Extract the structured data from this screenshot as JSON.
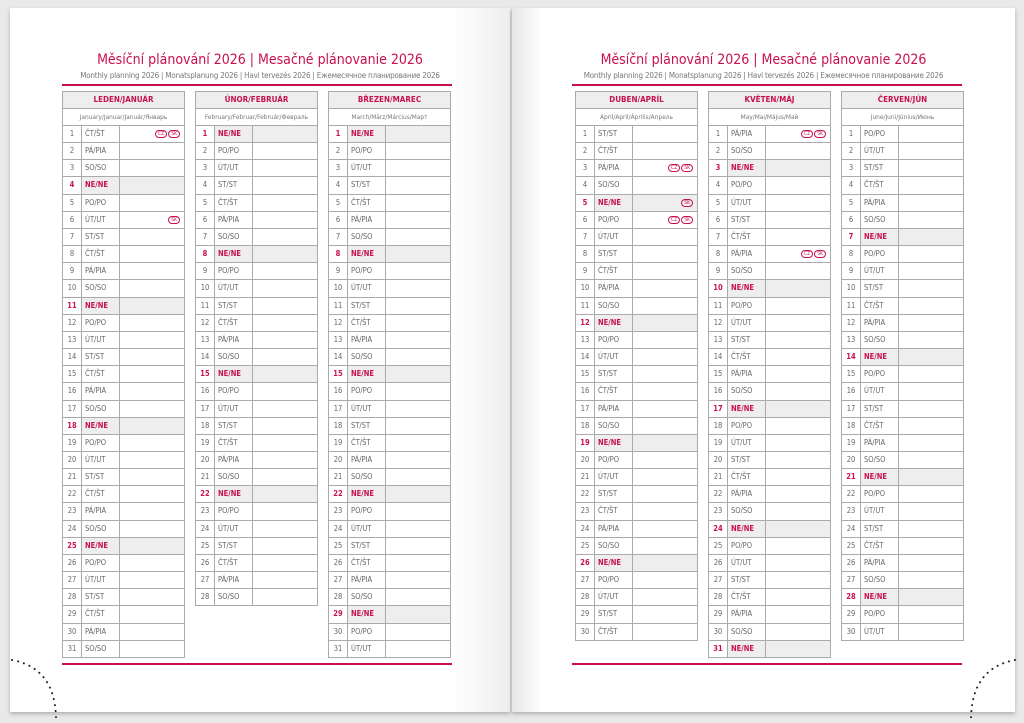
{
  "title": "Měsíční plánování 2026 | Mesačné plánovanie 2026",
  "subtitle": "Monthly planning 2026 | Monatsplanung 2026 | Havi tervezés 2026 | Ежемесячное планирование 2026",
  "colors": {
    "accent": "#c8104e",
    "sunday_fill": "#eeeeee"
  },
  "sunday_label": "NE/NE",
  "months": [
    {
      "name": "LEDEN/JANUÁR",
      "sub": "January/Januar/Január/Январь",
      "days": [
        "ČT/ŠT",
        "PÁ/PIA",
        "SO/SO",
        "NE/NE",
        "PO/PO",
        "ÚT/UT",
        "ST/ST",
        "ČT/ŠT",
        "PÁ/PIA",
        "SO/SO",
        "NE/NE",
        "PO/PO",
        "ÚT/UT",
        "ST/ST",
        "ČT/ŠT",
        "PÁ/PIA",
        "SO/SO",
        "NE/NE",
        "PO/PO",
        "ÚT/UT",
        "ST/ST",
        "ČT/ŠT",
        "PÁ/PIA",
        "SO/SO",
        "NE/NE",
        "PO/PO",
        "ÚT/UT",
        "ST/ST",
        "ČT/ŠT",
        "PÁ/PIA",
        "SO/SO"
      ],
      "holidays": {
        "1": [
          "CZ",
          "SK"
        ],
        "6": [
          "SK"
        ]
      }
    },
    {
      "name": "ÚNOR/FEBRUÁR",
      "sub": "February/Februar/Február/Февраль",
      "days": [
        "NE/NE",
        "PO/PO",
        "ÚT/UT",
        "ST/ST",
        "ČT/ŠT",
        "PÁ/PIA",
        "SO/SO",
        "NE/NE",
        "PO/PO",
        "ÚT/UT",
        "ST/ST",
        "ČT/ŠT",
        "PÁ/PIA",
        "SO/SO",
        "NE/NE",
        "PO/PO",
        "ÚT/UT",
        "ST/ST",
        "ČT/ŠT",
        "PÁ/PIA",
        "SO/SO",
        "NE/NE",
        "PO/PO",
        "ÚT/UT",
        "ST/ST",
        "ČT/ŠT",
        "PÁ/PIA",
        "SO/SO"
      ],
      "holidays": {}
    },
    {
      "name": "BŘEZEN/MAREC",
      "sub": "March/März/Március/Март",
      "days": [
        "NE/NE",
        "PO/PO",
        "ÚT/UT",
        "ST/ST",
        "ČT/ŠT",
        "PÁ/PIA",
        "SO/SO",
        "NE/NE",
        "PO/PO",
        "ÚT/UT",
        "ST/ST",
        "ČT/ŠT",
        "PÁ/PIA",
        "SO/SO",
        "NE/NE",
        "PO/PO",
        "ÚT/UT",
        "ST/ST",
        "ČT/ŠT",
        "PÁ/PIA",
        "SO/SO",
        "NE/NE",
        "PO/PO",
        "ÚT/UT",
        "ST/ST",
        "ČT/ŠT",
        "PÁ/PIA",
        "SO/SO",
        "NE/NE",
        "PO/PO",
        "ÚT/UT"
      ],
      "holidays": {}
    },
    {
      "name": "DUBEN/APRÍL",
      "sub": "April/April/Április/Апрель",
      "days": [
        "ST/ST",
        "ČT/ŠT",
        "PÁ/PIA",
        "SO/SO",
        "NE/NE",
        "PO/PO",
        "ÚT/UT",
        "ST/ST",
        "ČT/ŠT",
        "PÁ/PIA",
        "SO/SO",
        "NE/NE",
        "PO/PO",
        "ÚT/UT",
        "ST/ST",
        "ČT/ŠT",
        "PÁ/PIA",
        "SO/SO",
        "NE/NE",
        "PO/PO",
        "ÚT/UT",
        "ST/ST",
        "ČT/ŠT",
        "PÁ/PIA",
        "SO/SO",
        "NE/NE",
        "PO/PO",
        "ÚT/UT",
        "ST/ST",
        "ČT/ŠT"
      ],
      "holidays": {
        "3": [
          "CZ",
          "SK"
        ],
        "5": [
          "SK"
        ],
        "6": [
          "CZ",
          "SK"
        ]
      }
    },
    {
      "name": "KVĚTEN/MÁJ",
      "sub": "May/Mai/Május/Май",
      "days": [
        "PÁ/PIA",
        "SO/SO",
        "NE/NE",
        "PO/PO",
        "ÚT/UT",
        "ST/ST",
        "ČT/ŠT",
        "PÁ/PIA",
        "SO/SO",
        "NE/NE",
        "PO/PO",
        "ÚT/UT",
        "ST/ST",
        "ČT/ŠT",
        "PÁ/PIA",
        "SO/SO",
        "NE/NE",
        "PO/PO",
        "ÚT/UT",
        "ST/ST",
        "ČT/ŠT",
        "PÁ/PIA",
        "SO/SO",
        "NE/NE",
        "PO/PO",
        "ÚT/UT",
        "ST/ST",
        "ČT/ŠT",
        "PÁ/PIA",
        "SO/SO",
        "NE/NE"
      ],
      "holidays": {
        "1": [
          "CZ",
          "SK"
        ],
        "8": [
          "CZ",
          "SK"
        ]
      }
    },
    {
      "name": "ČERVEN/JÚN",
      "sub": "June/Juni/Június/Июнь",
      "days": [
        "PO/PO",
        "ÚT/UT",
        "ST/ST",
        "ČT/ŠT",
        "PÁ/PIA",
        "SO/SO",
        "NE/NE",
        "PO/PO",
        "ÚT/UT",
        "ST/ST",
        "ČT/ŠT",
        "PÁ/PIA",
        "SO/SO",
        "NE/NE",
        "PO/PO",
        "ÚT/UT",
        "ST/ST",
        "ČT/ŠT",
        "PÁ/PIA",
        "SO/SO",
        "NE/NE",
        "PO/PO",
        "ÚT/UT",
        "ST/ST",
        "ČT/ŠT",
        "PÁ/PIA",
        "SO/SO",
        "NE/NE",
        "PO/PO",
        "ÚT/UT"
      ],
      "holidays": {}
    }
  ]
}
